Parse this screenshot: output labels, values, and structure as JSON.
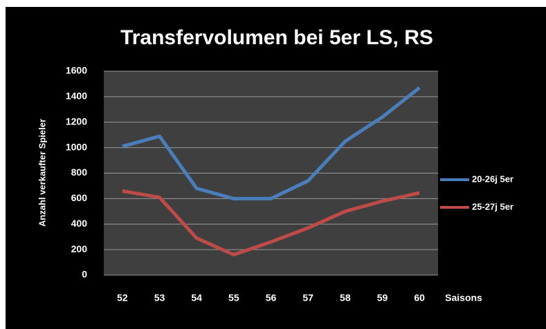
{
  "chart_data": {
    "type": "line",
    "title": "Transfervolumen bei 5er LS, RS",
    "x_label": "Saisons",
    "y_label": "Anzahl verkaufter Spieler",
    "categories": [
      "52",
      "53",
      "54",
      "55",
      "56",
      "57",
      "58",
      "59",
      "60"
    ],
    "series": [
      {
        "name": "20-26j 5er",
        "color": "#4a7ebb",
        "values": [
          1010,
          1090,
          680,
          600,
          600,
          740,
          1050,
          1240,
          1470
        ]
      },
      {
        "name": "25-27j 5er",
        "color": "#be4b48",
        "values": [
          660,
          610,
          290,
          160,
          260,
          370,
          500,
          580,
          645
        ]
      }
    ],
    "ylim": [
      0,
      1600
    ],
    "yticks": [
      0,
      200,
      400,
      600,
      800,
      1000,
      1200,
      1400,
      1600
    ],
    "grid": true,
    "legend": "right"
  }
}
